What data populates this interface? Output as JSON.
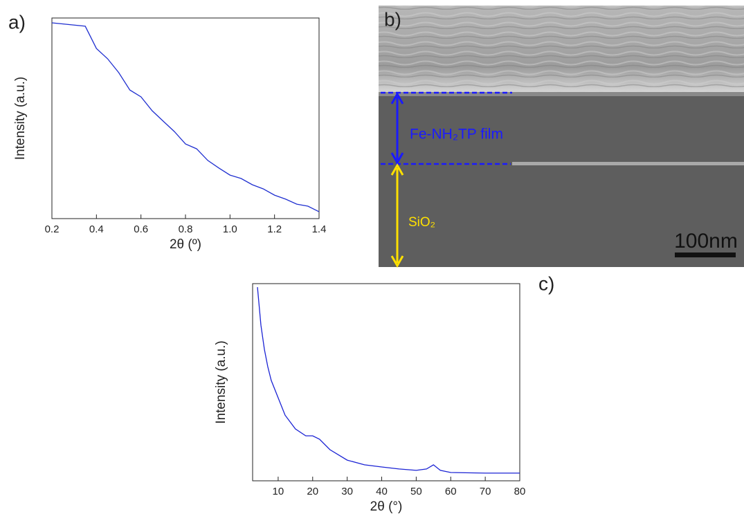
{
  "chart_data": [
    {
      "type": "line",
      "label": "a)",
      "xlabel": "2θ (º)",
      "ylabel": "Intensity (a.u.)",
      "x": [
        0.2,
        0.35,
        0.4,
        0.45,
        0.5,
        0.55,
        0.6,
        0.65,
        0.7,
        0.75,
        0.8,
        0.85,
        0.9,
        0.95,
        1.0,
        1.05,
        1.1,
        1.15,
        1.2,
        1.25,
        1.3,
        1.35,
        1.4
      ],
      "series": [
        {
          "color": "#1f2fd0",
          "values": [
            97.6,
            95.9,
            84.8,
            79.7,
            72.8,
            64.1,
            60.7,
            53.8,
            48.6,
            43.4,
            37.2,
            34.8,
            29.0,
            25.2,
            21.7,
            20.0,
            16.9,
            14.8,
            11.7,
            9.7,
            7.2,
            6.2,
            3.4
          ]
        }
      ],
      "xlim": [
        0.2,
        1.4
      ],
      "ylim": [
        0,
        100
      ],
      "xticks": [
        0.2,
        0.4,
        0.6,
        0.8,
        {
          "value": 1,
          "label": "1.0"
        },
        1.2,
        1.4
      ]
    },
    {
      "type": "line",
      "label": "c)",
      "xlabel": "2θ (°)",
      "ylabel": "Intensity (a.u.)",
      "x": [
        4,
        5,
        6,
        7,
        8,
        10,
        12,
        15,
        18,
        20,
        22,
        25,
        30,
        35,
        40,
        45,
        50,
        53,
        55,
        57,
        60,
        70,
        80
      ],
      "series": [
        {
          "color": "#1a22d4",
          "values": [
            98.2,
            78.9,
            66.7,
            57.9,
            50.9,
            42.1,
            33.3,
            26.3,
            22.8,
            22.8,
            21.1,
            15.8,
            10.5,
            8.1,
            7.0,
            6.0,
            5.3,
            6.0,
            8.1,
            5.3,
            4.2,
            3.9,
            3.9
          ]
        }
      ],
      "xlim": [
        2.6,
        80
      ],
      "ylim": [
        0,
        100
      ],
      "xticks": [
        10,
        20,
        30,
        40,
        50,
        60,
        70,
        80
      ]
    }
  ],
  "image_panel": {
    "label": "b)",
    "film_label": "Fe-NH₂TP film",
    "substrate_label": "SiO₂",
    "scale_bar": "100nm"
  }
}
